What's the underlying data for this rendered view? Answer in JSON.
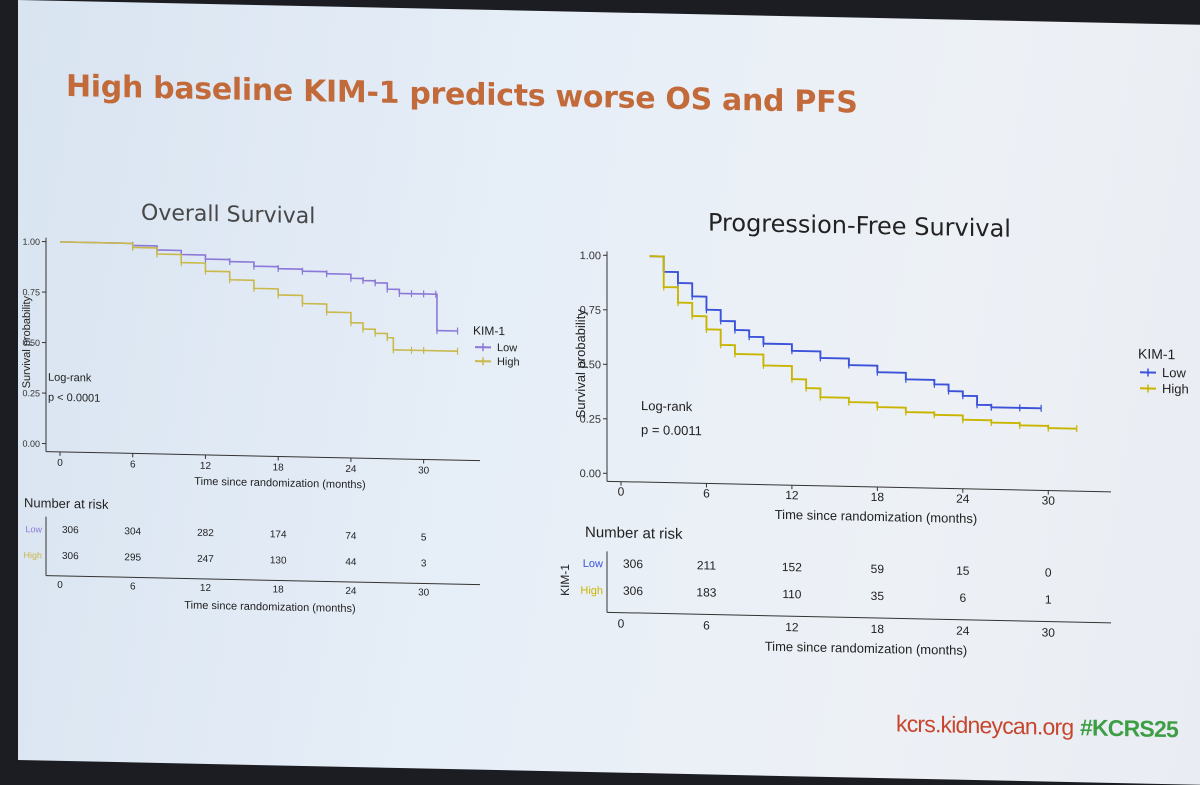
{
  "slide": {
    "title": "High baseline KIM-1 predicts worse OS and PFS",
    "footer_url": "kcrs.kidneycan.org",
    "footer_tag": "#KCRS25"
  },
  "colors": {
    "title": "#c26a3a",
    "low": "#3b52d9",
    "high": "#c9b500",
    "os_low": "#8b78d8",
    "os_high": "#c9b84a",
    "footer_url": "#c8452d",
    "footer_tag": "#3e9e45"
  },
  "chart_data": [
    {
      "type": "line",
      "title": "Overall Survival",
      "xlabel": "Time since randomization (months)",
      "ylabel": "Survival probability",
      "xlim": [
        0,
        33
      ],
      "ylim": [
        0,
        1
      ],
      "x_ticks": [
        0,
        6,
        12,
        18,
        24,
        30
      ],
      "y_ticks": [
        "0.00",
        "0.25",
        "0.50",
        "0.75",
        "1.00"
      ],
      "legend_title": "KIM-1",
      "legend_position": "right",
      "annotation": [
        "Log-rank",
        "p < 0.0001"
      ],
      "series": [
        {
          "name": "Low",
          "x": [
            0,
            6,
            8,
            10,
            12,
            14,
            16,
            18,
            20,
            22,
            24,
            25,
            26,
            27,
            28,
            29,
            30,
            31,
            31.1,
            32.8
          ],
          "y": [
            1.0,
            0.99,
            0.97,
            0.95,
            0.93,
            0.92,
            0.9,
            0.89,
            0.88,
            0.87,
            0.85,
            0.84,
            0.83,
            0.8,
            0.78,
            0.78,
            0.78,
            0.78,
            0.6,
            0.6
          ]
        },
        {
          "name": "High",
          "x": [
            0,
            6,
            8,
            10,
            12,
            14,
            16,
            18,
            20,
            22,
            24,
            25,
            26,
            27,
            27.5,
            29,
            30,
            32.8
          ],
          "y": [
            1.0,
            0.98,
            0.95,
            0.91,
            0.87,
            0.83,
            0.79,
            0.76,
            0.72,
            0.68,
            0.63,
            0.6,
            0.58,
            0.56,
            0.5,
            0.5,
            0.5,
            0.5
          ]
        }
      ],
      "risk_table": {
        "title": "Number at risk",
        "ylabel": "",
        "row_labels": [
          "Low",
          "High"
        ],
        "times": [
          0,
          6,
          12,
          18,
          24,
          30
        ],
        "rows": [
          [
            306,
            304,
            282,
            174,
            74,
            5
          ],
          [
            306,
            295,
            247,
            130,
            44,
            3
          ]
        ],
        "xlabel": "Time since randomization (months)"
      }
    },
    {
      "type": "line",
      "title": "Progression-Free Survival",
      "xlabel": "Time since randomization (months)",
      "ylabel": "Survival probability",
      "xlim": [
        0,
        33
      ],
      "ylim": [
        0,
        1
      ],
      "x_ticks": [
        0,
        6,
        12,
        18,
        24,
        30
      ],
      "y_ticks": [
        "0.00",
        "0.25",
        "0.50",
        "0.75",
        "1.00"
      ],
      "legend_title": "KIM-1",
      "legend_position": "right",
      "annotation": [
        "Log-rank",
        "p = 0.0011"
      ],
      "series": [
        {
          "name": "Low",
          "x": [
            2,
            3,
            4,
            5,
            6,
            7,
            8,
            9,
            10,
            12,
            14,
            16,
            18,
            20,
            22,
            23,
            24,
            25,
            26,
            28,
            29.5
          ],
          "y": [
            1.0,
            0.93,
            0.88,
            0.82,
            0.76,
            0.71,
            0.67,
            0.64,
            0.61,
            0.58,
            0.55,
            0.52,
            0.49,
            0.46,
            0.44,
            0.41,
            0.39,
            0.35,
            0.34,
            0.34,
            0.34
          ]
        },
        {
          "name": "High",
          "x": [
            2,
            3,
            4,
            5,
            6,
            7,
            8,
            10,
            12,
            13,
            14,
            16,
            18,
            20,
            22,
            24,
            26,
            28,
            30,
            32
          ],
          "y": [
            1.0,
            0.86,
            0.79,
            0.73,
            0.67,
            0.6,
            0.56,
            0.51,
            0.45,
            0.41,
            0.37,
            0.35,
            0.33,
            0.31,
            0.3,
            0.28,
            0.27,
            0.26,
            0.25,
            0.25
          ]
        }
      ],
      "risk_table": {
        "title": "Number at risk",
        "ylabel": "KIM-1",
        "row_labels": [
          "Low",
          "High"
        ],
        "times": [
          0,
          6,
          12,
          18,
          24,
          30
        ],
        "rows": [
          [
            306,
            211,
            152,
            59,
            15,
            0
          ],
          [
            306,
            183,
            110,
            35,
            6,
            1
          ]
        ],
        "xlabel": "Time since randomization (months)"
      }
    }
  ]
}
